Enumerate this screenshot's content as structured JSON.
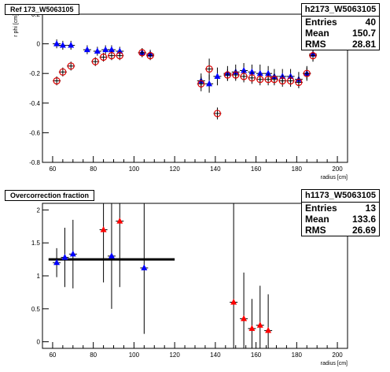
{
  "chart_data": [
    {
      "type": "scatter",
      "title": "Ref 173_W5063105",
      "xlabel": "radius [cm]",
      "ylabel": "r phi [cm]",
      "xlim": [
        55,
        205
      ],
      "ylim": [
        -0.8,
        0.2
      ],
      "xticks": [
        "60",
        "80",
        "100",
        "120",
        "140",
        "160",
        "180",
        "200"
      ],
      "yticks": [
        "-0.8",
        "-0.6",
        "-0.4",
        "-0.2",
        "0",
        "0.2"
      ],
      "stats": {
        "name": "h2173_W5063105",
        "entries_label": "Entries",
        "entries": "40",
        "mean_label": "Mean",
        "mean": "150.7",
        "rms_label": "RMS",
        "rms": "28.81"
      },
      "series": [
        {
          "marker": "triangle",
          "color": "#0000ff",
          "x": [
            62,
            65,
            69,
            77,
            82,
            86,
            89,
            93,
            104,
            108,
            133,
            137,
            141,
            146,
            150,
            154,
            158,
            162,
            166,
            169,
            173,
            177,
            181,
            185,
            188
          ],
          "y": [
            0.0,
            -0.01,
            -0.01,
            -0.04,
            -0.05,
            -0.04,
            -0.04,
            -0.05,
            -0.06,
            -0.07,
            -0.25,
            -0.27,
            -0.22,
            -0.2,
            -0.19,
            -0.18,
            -0.19,
            -0.2,
            -0.2,
            -0.22,
            -0.22,
            -0.22,
            -0.24,
            -0.2,
            -0.07
          ],
          "yerr": [
            0.03,
            0.03,
            0.03,
            0.03,
            0.03,
            0.03,
            0.03,
            0.03,
            0.03,
            0.03,
            0.05,
            0.06,
            0.06,
            0.05,
            0.05,
            0.05,
            0.05,
            0.06,
            0.05,
            0.05,
            0.05,
            0.05,
            0.05,
            0.05,
            0.05
          ]
        },
        {
          "marker": "circle-open",
          "color": "#dd0000",
          "x": [
            62,
            65,
            69,
            81,
            85,
            89,
            93,
            104,
            108,
            133,
            137,
            141,
            146,
            150,
            154,
            158,
            162,
            166,
            169,
            173,
            177,
            181,
            185,
            188
          ],
          "y": [
            -0.25,
            -0.19,
            -0.15,
            -0.12,
            -0.09,
            -0.08,
            -0.08,
            -0.06,
            -0.08,
            -0.27,
            -0.17,
            -0.47,
            -0.21,
            -0.21,
            -0.22,
            -0.23,
            -0.24,
            -0.24,
            -0.24,
            -0.25,
            -0.25,
            -0.26,
            -0.2,
            -0.08
          ],
          "yerr": [
            0.03,
            0.03,
            0.03,
            0.03,
            0.03,
            0.03,
            0.03,
            0.03,
            0.03,
            0.05,
            0.07,
            0.04,
            0.04,
            0.04,
            0.04,
            0.04,
            0.04,
            0.04,
            0.04,
            0.04,
            0.04,
            0.04,
            0.04,
            0.04
          ]
        }
      ]
    },
    {
      "type": "scatter",
      "title": "Overcorrection fraction",
      "xlabel": "radius [cm]",
      "ylabel": "",
      "xlim": [
        55,
        205
      ],
      "ylim": [
        -0.1,
        2.1
      ],
      "xticks": [
        "60",
        "80",
        "100",
        "120",
        "140",
        "160",
        "180",
        "200"
      ],
      "yticks": [
        "0",
        "0.5",
        "1",
        "1.5",
        "2"
      ],
      "stats": {
        "name": "h1173_W5063105",
        "entries_label": "Entries",
        "entries": "13",
        "mean_label": "Mean",
        "mean": "133.6",
        "rms_label": "RMS",
        "rms": "26.69"
      },
      "reference_line": {
        "y": 1.25,
        "x": [
          58,
          120
        ]
      },
      "series": [
        {
          "marker": "triangle",
          "color": "#0000ff",
          "x": [
            62,
            66,
            70,
            89,
            105
          ],
          "y": [
            1.2,
            1.28,
            1.33,
            1.3,
            1.12
          ],
          "yerr": [
            0.22,
            0.45,
            0.52,
            0.8,
            1.0
          ]
        },
        {
          "marker": "triangle",
          "color": "#ff0000",
          "x": [
            85,
            93,
            149,
            154,
            158,
            162,
            166
          ],
          "y": [
            1.7,
            1.83,
            0.6,
            0.35,
            0.2,
            0.25,
            0.17
          ],
          "yerr": [
            0.8,
            1.0,
            1.6,
            0.7,
            0.45,
            0.6,
            0.55
          ]
        }
      ]
    }
  ]
}
